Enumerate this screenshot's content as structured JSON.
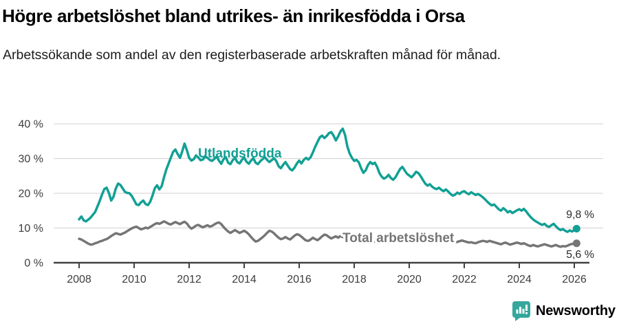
{
  "title": "Högre arbetslöshet bland utrikes- än inrikesfödda i Orsa",
  "subtitle": "Arbetssökande som andel av den registerbaserade arbetskraften månad för månad.",
  "branding": {
    "logo_text": "Newsworthy",
    "logo_color": "#35a79c"
  },
  "colors": {
    "accent_teal": "#12a095",
    "line_gray": "#757575",
    "axis": "#414141",
    "gridline": "#d9d9d9",
    "tick_text": "#3d3d3d"
  },
  "chart_data": {
    "type": "line",
    "title": "Högre arbetslöshet bland utrikes- än inrikesfödda i Orsa",
    "xlabel": "",
    "ylabel": "",
    "x_start_year": 2008,
    "x_start_month": 1,
    "months_per_point": 1,
    "x_ticks": [
      2008,
      2010,
      2012,
      2014,
      2016,
      2018,
      2020,
      2022,
      2024,
      2026
    ],
    "y_ticks": [
      {
        "label": "40 %",
        "value": 40
      },
      {
        "label": "30 %",
        "value": 30
      },
      {
        "label": "20 %",
        "value": 20
      },
      {
        "label": "10 %",
        "value": 10
      },
      {
        "label": "0 %",
        "value": 0
      }
    ],
    "ylim": [
      0,
      40
    ],
    "grid": true,
    "legend_position": "inline-labels",
    "series": [
      {
        "name": "Utlandsfödda",
        "color": "#12a095",
        "end_label": "9,8 %",
        "end_value": 9.8,
        "values": [
          12.5,
          13.3,
          12.2,
          11.9,
          12.4,
          13.0,
          13.8,
          14.6,
          16.2,
          17.8,
          19.6,
          21.2,
          21.6,
          20.1,
          17.9,
          19.0,
          21.3,
          22.8,
          22.4,
          21.4,
          20.4,
          20.1,
          20.0,
          19.2,
          18.0,
          16.8,
          16.6,
          17.4,
          17.9,
          16.9,
          16.6,
          17.5,
          19.3,
          21.4,
          22.3,
          21.1,
          22.0,
          24.5,
          26.8,
          28.5,
          30.2,
          31.9,
          32.6,
          31.3,
          30.2,
          32.1,
          34.3,
          32.4,
          30.2,
          29.4,
          29.8,
          30.9,
          30.3,
          29.5,
          29.7,
          30.6,
          30.2,
          29.6,
          29.3,
          29.9,
          30.6,
          29.4,
          28.5,
          29.8,
          30.4,
          28.8,
          28.4,
          29.5,
          30.2,
          29.0,
          28.6,
          29.6,
          30.3,
          29.1,
          28.5,
          29.4,
          30.1,
          28.8,
          28.4,
          29.2,
          29.8,
          30.4,
          29.6,
          29.0,
          29.5,
          30.1,
          29.3,
          27.8,
          27.2,
          28.2,
          29.0,
          28.0,
          27.0,
          26.6,
          27.4,
          28.6,
          29.4,
          28.6,
          29.6,
          30.2,
          29.7,
          30.4,
          31.8,
          33.4,
          34.8,
          36.1,
          36.6,
          35.9,
          36.5,
          37.3,
          37.6,
          36.6,
          35.2,
          36.4,
          37.8,
          38.6,
          36.8,
          33.5,
          31.5,
          30.2,
          29.3,
          29.6,
          28.9,
          27.2,
          25.9,
          26.6,
          28.1,
          29.0,
          28.4,
          28.8,
          27.6,
          25.8,
          24.8,
          24.2,
          24.6,
          25.3,
          24.4,
          23.9,
          24.6,
          25.8,
          27.0,
          27.6,
          26.6,
          25.6,
          25.1,
          24.6,
          25.3,
          26.2,
          25.8,
          24.9,
          23.8,
          22.8,
          22.2,
          22.6,
          21.9,
          21.4,
          21.2,
          21.6,
          21.0,
          20.6,
          21.1,
          20.5,
          19.8,
          19.3,
          19.6,
          20.2,
          19.8,
          20.4,
          20.6,
          20.1,
          19.7,
          20.3,
          19.9,
          19.5,
          19.8,
          19.4,
          18.9,
          18.3,
          17.6,
          17.0,
          16.5,
          16.8,
          16.1,
          15.4,
          15.0,
          15.7,
          15.2,
          14.5,
          14.9,
          14.3,
          14.7,
          15.1,
          15.4,
          15.0,
          15.5,
          14.8,
          13.9,
          13.1,
          12.5,
          12.0,
          11.6,
          11.2,
          10.9,
          11.2,
          10.6,
          10.3,
          10.8,
          11.2,
          10.5,
          9.8,
          9.4,
          9.7,
          9.2,
          8.9,
          9.3,
          9.0,
          9.4,
          9.8
        ]
      },
      {
        "name": "Total arbetslöshet",
        "color": "#757575",
        "end_label": "5,6 %",
        "end_value": 5.6,
        "values": [
          6.9,
          6.7,
          6.3,
          5.9,
          5.5,
          5.2,
          5.3,
          5.6,
          5.8,
          6.1,
          6.3,
          6.6,
          6.8,
          7.2,
          7.7,
          8.1,
          8.5,
          8.3,
          8.1,
          8.4,
          8.7,
          9.1,
          9.5,
          9.9,
          10.2,
          10.4,
          10.0,
          9.6,
          9.8,
          10.1,
          9.9,
          10.3,
          10.7,
          11.1,
          11.4,
          11.2,
          11.5,
          11.9,
          11.6,
          11.2,
          11.0,
          11.4,
          11.7,
          11.4,
          11.1,
          11.5,
          11.8,
          11.3,
          10.4,
          9.8,
          10.2,
          10.7,
          10.9,
          10.5,
          10.2,
          10.5,
          10.8,
          10.4,
          10.6,
          11.0,
          11.4,
          11.6,
          11.1,
          10.3,
          9.6,
          9.0,
          8.6,
          9.0,
          9.4,
          9.0,
          8.6,
          8.9,
          9.2,
          8.8,
          8.2,
          7.4,
          6.7,
          6.1,
          6.3,
          6.8,
          7.3,
          7.9,
          8.6,
          9.2,
          9.0,
          8.5,
          7.8,
          7.2,
          6.8,
          7.0,
          7.4,
          7.0,
          6.7,
          7.2,
          7.8,
          8.2,
          8.0,
          7.5,
          6.9,
          6.4,
          6.3,
          6.7,
          7.2,
          6.8,
          6.5,
          7.0,
          7.6,
          8.1,
          7.9,
          7.4,
          7.0,
          7.3,
          7.6,
          7.2,
          7.7,
          7.4,
          7.0,
          6.8,
          7.1,
          7.4,
          7.1,
          6.7,
          6.4,
          6.1,
          5.9,
          6.2,
          6.5,
          6.2,
          5.9,
          6.1,
          6.4,
          6.6,
          6.4,
          6.1,
          5.9,
          6.2,
          6.0,
          5.7,
          6.0,
          6.3,
          6.6,
          6.4,
          6.2,
          6.5,
          6.8,
          7.0,
          7.6,
          8.2,
          8.5,
          8.3,
          8.0,
          7.7,
          7.4,
          7.1,
          6.8,
          6.6,
          6.9,
          7.1,
          6.8,
          6.5,
          6.2,
          6.0,
          6.3,
          6.0,
          5.8,
          6.0,
          6.2,
          6.4,
          6.2,
          6.0,
          5.8,
          5.9,
          5.7,
          5.6,
          5.9,
          6.1,
          6.3,
          6.2,
          6.0,
          6.3,
          6.1,
          5.9,
          5.7,
          5.5,
          5.3,
          5.6,
          5.8,
          5.5,
          5.2,
          5.4,
          5.6,
          5.8,
          5.6,
          5.4,
          5.6,
          5.3,
          5.0,
          4.8,
          5.1,
          4.9,
          4.7,
          4.9,
          5.1,
          5.3,
          5.1,
          4.9,
          4.7,
          4.9,
          5.1,
          4.8,
          4.6,
          4.8,
          4.7,
          4.9,
          5.2,
          5.4,
          5.5,
          5.6
        ]
      }
    ]
  }
}
